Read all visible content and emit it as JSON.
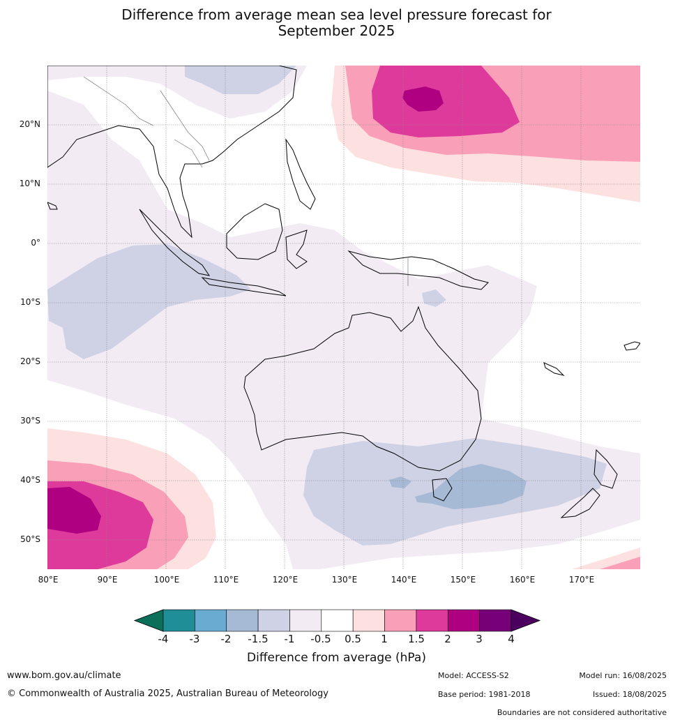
{
  "title_line1": "Difference from average mean sea level pressure forecast for",
  "title_line2": "September 2025",
  "map": {
    "lat_labels": [
      "20°N",
      "10°N",
      "0°",
      "10°S",
      "20°S",
      "30°S",
      "40°S",
      "50°S"
    ],
    "lon_labels": [
      "80°E",
      "90°E",
      "100°E",
      "110°E",
      "120°E",
      "130°E",
      "140°E",
      "150°E",
      "160°E",
      "170°E"
    ],
    "extent": {
      "lon_min": 80,
      "lon_max": 180,
      "lat_min": -55,
      "lat_max": 30
    }
  },
  "colorbar": {
    "title": "Difference from average (hPa)",
    "labels": [
      "-4",
      "-3",
      "-2",
      "-1.5",
      "-1",
      "-0.5",
      "0.5",
      "1",
      "1.5",
      "2",
      "3",
      "4"
    ],
    "colors": [
      "#0b6f5a",
      "#1f8e96",
      "#6aabd1",
      "#a6bad6",
      "#cfd1e5",
      "#f2ebf4",
      "#ffffff",
      "#fde0e0",
      "#f99fb7",
      "#de3a9b",
      "#ae0080",
      "#760077",
      "#4b0060"
    ]
  },
  "footer": {
    "website": "www.bom.gov.au/climate",
    "copyright": "© Commonwealth of Australia 2025, Australian Bureau of Meteorology",
    "model": "Model: ACCESS-S2",
    "base_period": "Base period: 1981-2018",
    "model_run": "Model run: 16/08/2025",
    "issued": "Issued: 18/08/2025",
    "disclaimer": "Boundaries are not considered authoritative"
  }
}
